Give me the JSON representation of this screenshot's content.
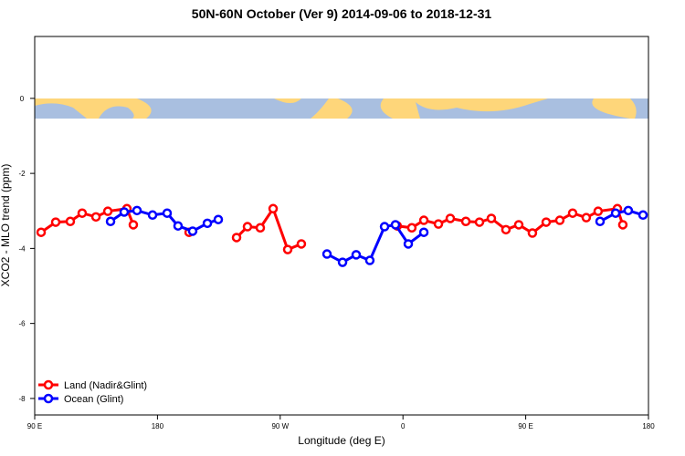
{
  "chart_data": {
    "type": "line",
    "title": "50N-60N October (Ver 9)   2014-09-06 to 2018-12-31",
    "x_label": "Longitude (deg E)",
    "y_label": "XCO2 - MLO trend (ppm)",
    "xlim": [
      90,
      540
    ],
    "ylim": [
      -8.44,
      1.65
    ],
    "xticks": [
      {
        "value": 90,
        "label": "90 E"
      },
      {
        "value": 180,
        "label": "180"
      },
      {
        "value": 270,
        "label": "90 W"
      },
      {
        "value": 360,
        "label": "0"
      },
      {
        "value": 450,
        "label": "90 E"
      },
      {
        "value": 540,
        "label": "180"
      }
    ],
    "yticks": [
      0,
      -2,
      -4,
      -6,
      -8
    ],
    "legend": "bottom-left",
    "series": [
      {
        "name": "Land (Nadir&Glint)",
        "color": "#ff0000",
        "x": [
          94.7,
          105.4,
          116.1,
          124.8,
          134.9,
          143.6,
          157.6,
          162.3,
          null,
          203.2,
          null,
          238.0,
          246.0,
          255.4,
          264.8,
          275.5,
          285.5,
          null,
          355.8,
          366.5,
          375.3,
          386.0,
          394.7,
          406.1,
          416.1,
          424.8,
          435.5,
          444.9,
          454.9,
          465.0,
          475.0,
          484.4,
          494.4,
          503.1,
          517.2,
          521.2
        ],
        "values": [
          -3.57,
          -3.3,
          -3.28,
          -3.06,
          -3.16,
          -3.01,
          -2.94,
          -3.37,
          null,
          -3.57,
          null,
          -3.71,
          -3.42,
          -3.45,
          -2.94,
          -4.03,
          -3.88,
          null,
          -3.4,
          -3.45,
          -3.25,
          -3.35,
          -3.2,
          -3.28,
          -3.3,
          -3.2,
          -3.5,
          -3.37,
          -3.59,
          -3.3,
          -3.25,
          -3.06,
          -3.18,
          -3.01,
          -2.94,
          -3.37
        ]
      },
      {
        "name": "Ocean (Glint)",
        "color": "#0000ff",
        "x": [
          145.6,
          155.6,
          165.0,
          176.4,
          187.1,
          195.1,
          205.8,
          216.6,
          224.6,
          null,
          304.3,
          315.7,
          325.7,
          335.7,
          346.5,
          354.5,
          363.9,
          375.3,
          null,
          504.5,
          515.9,
          525.2,
          536.0
        ],
        "values": [
          -3.28,
          -3.03,
          -2.99,
          -3.11,
          -3.06,
          -3.4,
          -3.54,
          -3.33,
          -3.23,
          null,
          -4.15,
          -4.37,
          -4.17,
          -4.32,
          -3.42,
          -3.37,
          -3.88,
          -3.57,
          null,
          -3.28,
          -3.06,
          -2.99,
          -3.11
        ]
      }
    ]
  }
}
